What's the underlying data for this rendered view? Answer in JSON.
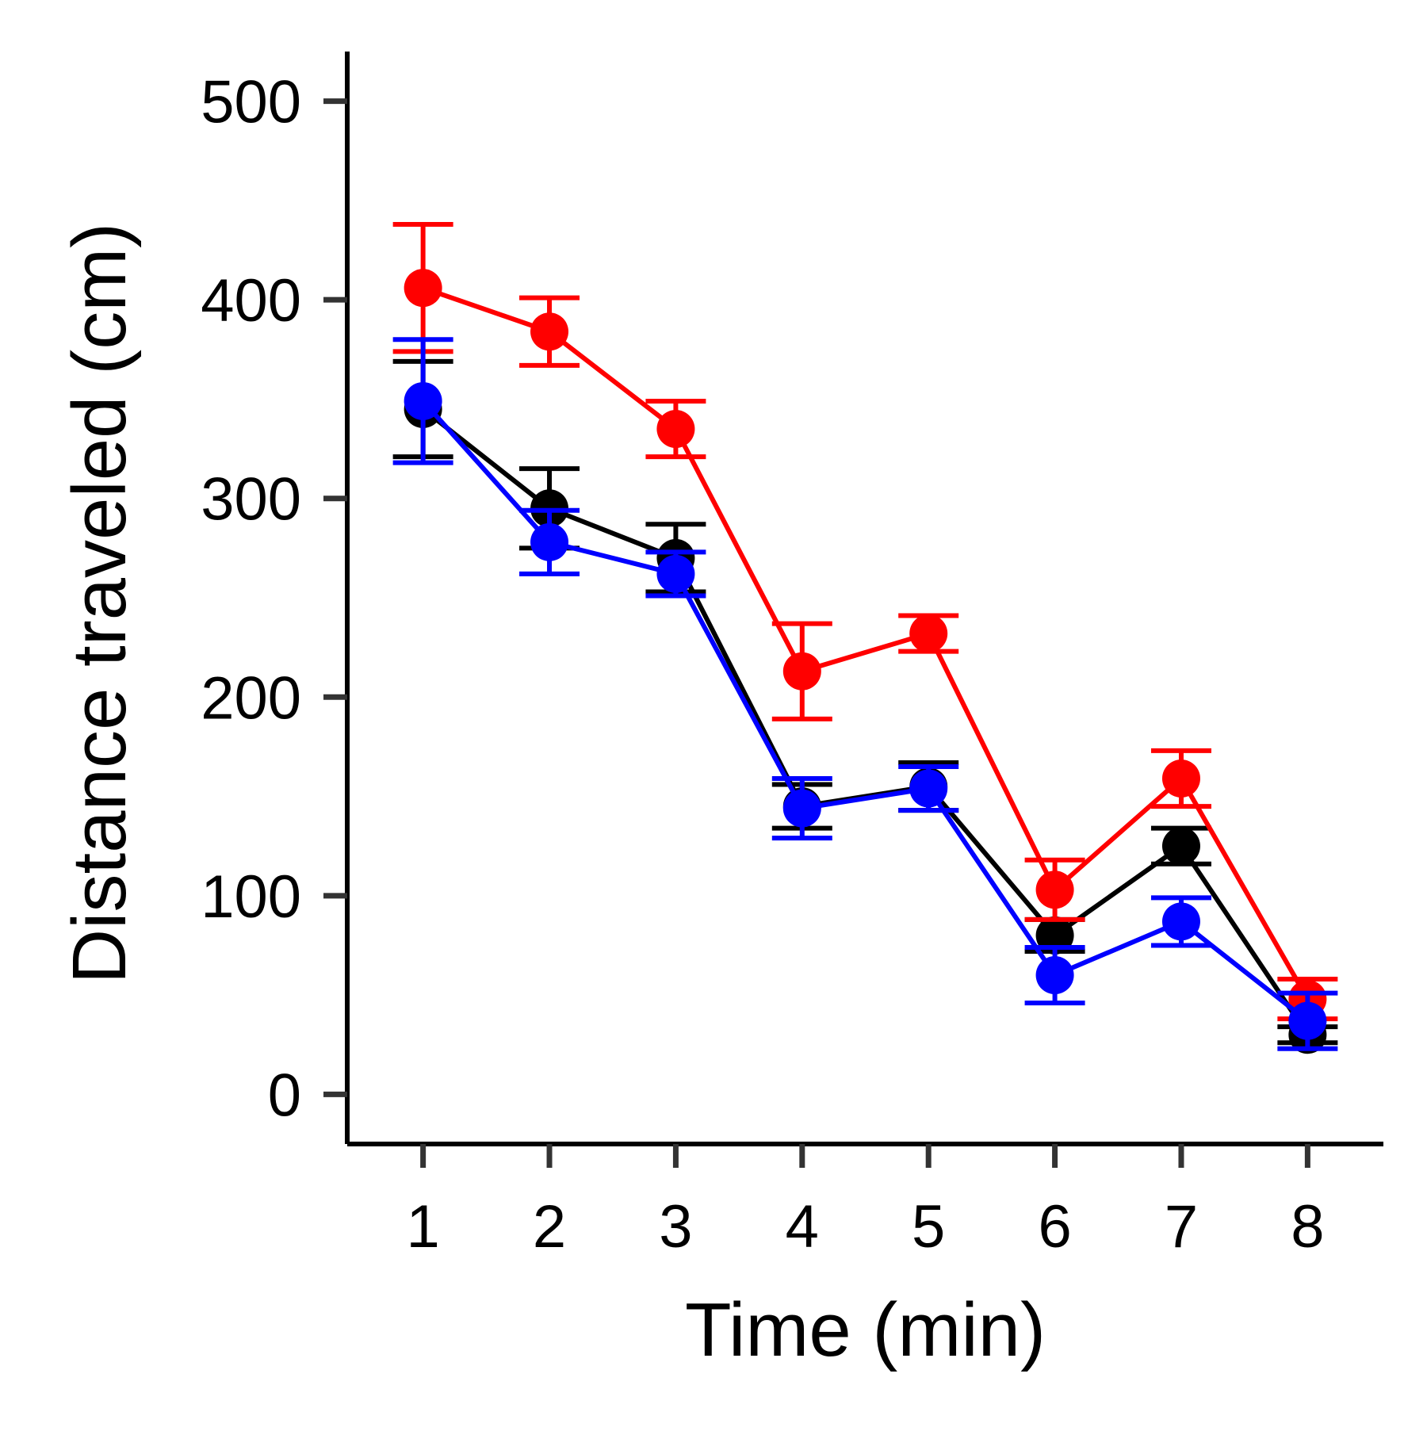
{
  "chart_data": {
    "type": "line",
    "title": "",
    "xlabel": "Time (min)",
    "ylabel": "Distance traveled (cm)",
    "x": [
      1,
      2,
      3,
      4,
      5,
      6,
      7,
      8
    ],
    "x_ticks": [
      "1",
      "2",
      "3",
      "4",
      "5",
      "6",
      "7",
      "8"
    ],
    "y_ticks": [
      0,
      100,
      200,
      300,
      400,
      500
    ],
    "ylim": [
      -25,
      525
    ],
    "xlim": [
      0.4,
      8.6
    ],
    "grid": false,
    "legend": "none",
    "error_bars": true,
    "series": [
      {
        "color": "#000000",
        "values": [
          345,
          295,
          270,
          145,
          155,
          80,
          125,
          30
        ],
        "errors": [
          24,
          20,
          17,
          11,
          12,
          8,
          9,
          4
        ]
      },
      {
        "color": "#ff0000",
        "values": [
          406,
          384,
          335,
          213,
          232,
          103,
          159,
          48
        ],
        "errors": [
          32,
          17,
          14,
          24,
          9,
          15,
          14,
          10
        ]
      },
      {
        "color": "#0000ff",
        "values": [
          349,
          278,
          262,
          144,
          154,
          60,
          87,
          37
        ],
        "errors": [
          31,
          16,
          11,
          15,
          11,
          14,
          12,
          14
        ]
      }
    ]
  }
}
